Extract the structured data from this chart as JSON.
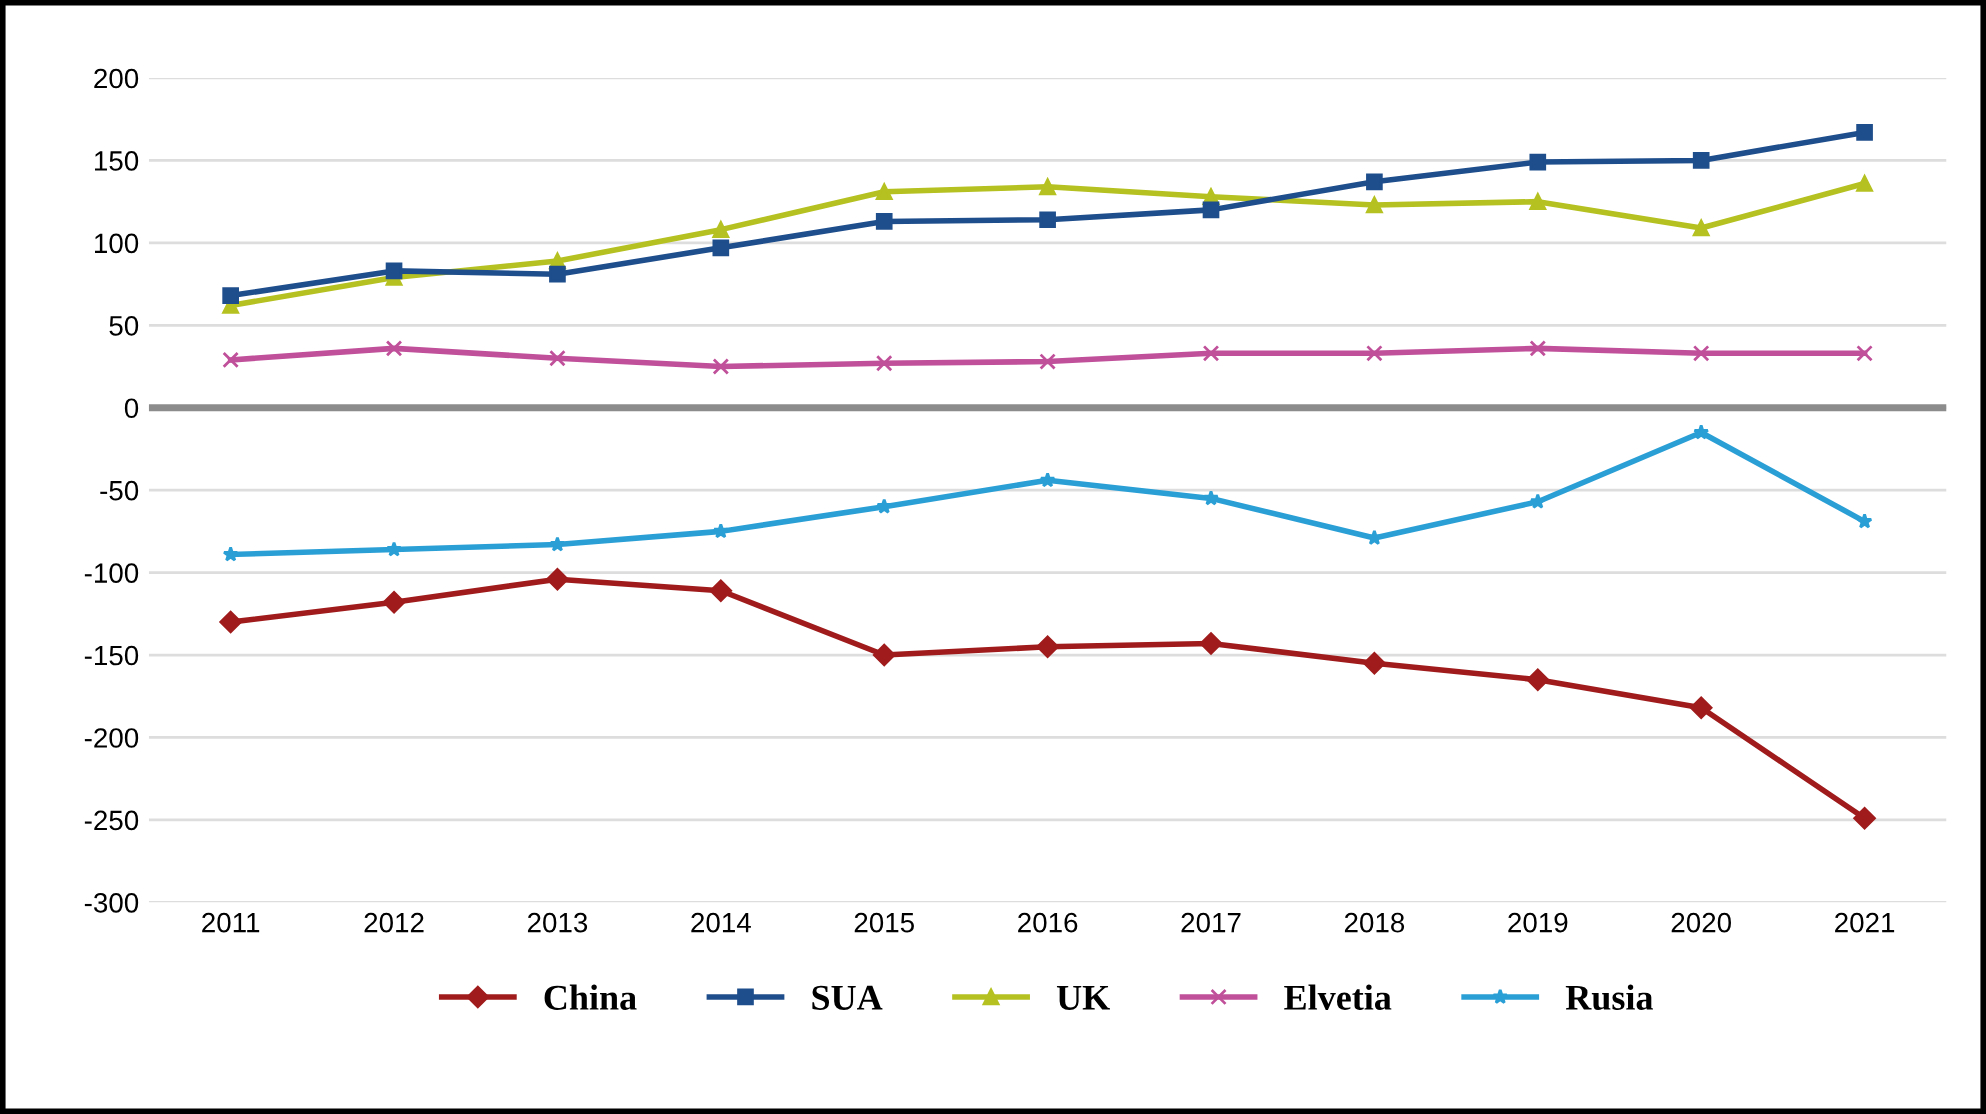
{
  "chart_data": {
    "type": "line",
    "categories": [
      "2011",
      "2012",
      "2013",
      "2014",
      "2015",
      "2016",
      "2017",
      "2018",
      "2019",
      "2020",
      "2021"
    ],
    "series": [
      {
        "name": "China",
        "color": "#a01c1c",
        "marker": "diamond",
        "values": [
          -130,
          -118,
          -104,
          -111,
          -150,
          -145,
          -143,
          -155,
          -165,
          -182,
          -249
        ]
      },
      {
        "name": "SUA",
        "color": "#1f4e8c",
        "marker": "square",
        "values": [
          68,
          83,
          81,
          97,
          113,
          114,
          120,
          137,
          149,
          150,
          167
        ]
      },
      {
        "name": "UK",
        "color": "#b5c120",
        "marker": "triangle",
        "values": [
          62,
          79,
          89,
          108,
          131,
          134,
          128,
          123,
          125,
          109,
          136
        ]
      },
      {
        "name": "Elvetia",
        "color": "#c0509a",
        "marker": "cross",
        "values": [
          29,
          36,
          30,
          25,
          27,
          28,
          33,
          33,
          36,
          33,
          33
        ]
      },
      {
        "name": "Rusia",
        "color": "#2a9fd6",
        "marker": "star",
        "values": [
          -89,
          -86,
          -83,
          -75,
          -60,
          -44,
          -55,
          -79,
          -57,
          -15,
          -69
        ]
      }
    ],
    "ylim": [
      -300,
      200
    ],
    "yticks": [
      -300,
      -250,
      -200,
      -150,
      -100,
      -50,
      0,
      50,
      100,
      150,
      200
    ],
    "ref_lines": [
      {
        "axis": "y",
        "value": 0,
        "color": "#8c8c8c"
      }
    ],
    "grid": "y",
    "legend": "bottom",
    "line_style": "solid"
  }
}
